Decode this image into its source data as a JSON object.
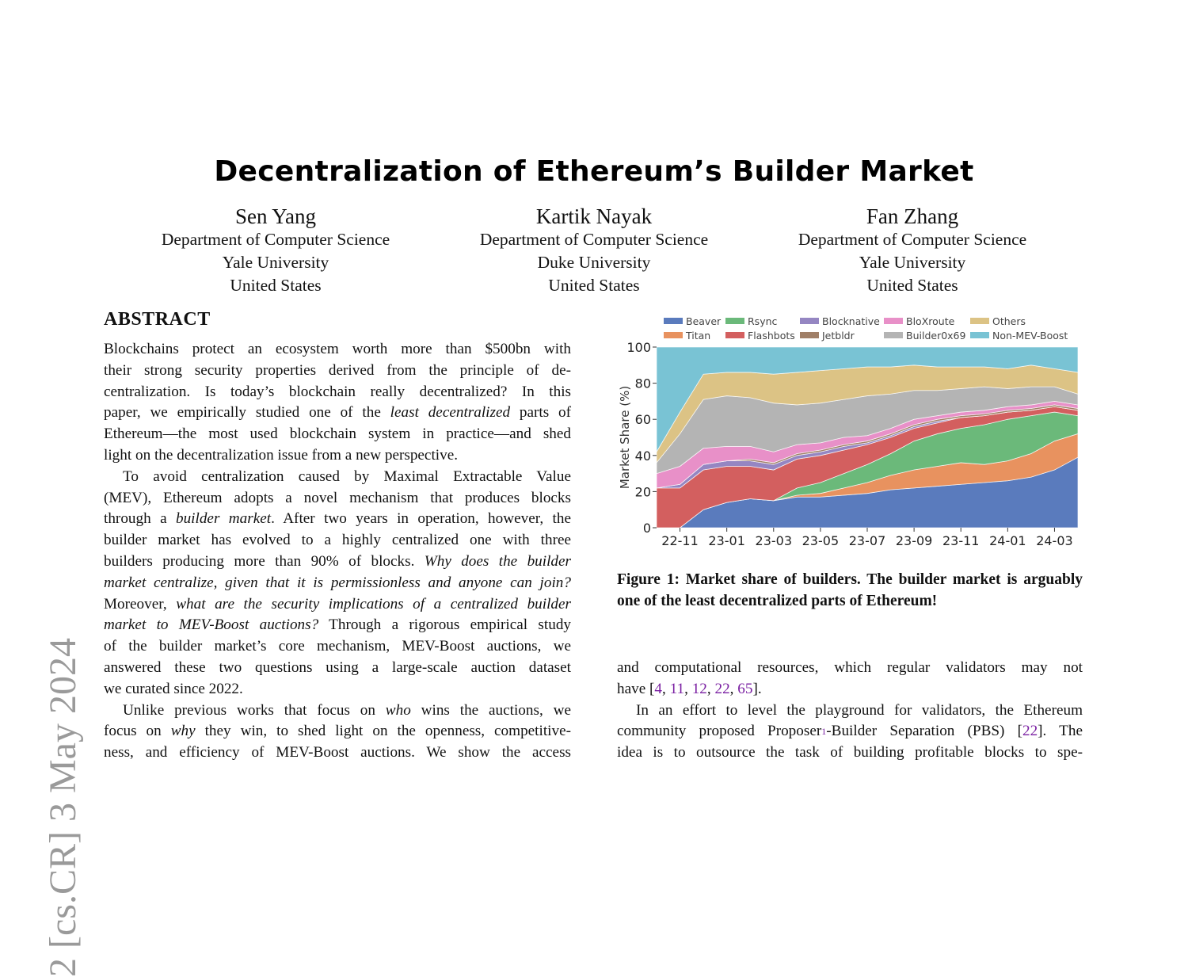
{
  "arxiv_stamp": "2  [cs.CR]  3 May 2024",
  "title": "Decentralization of Ethereum’s Builder Market",
  "authors": [
    {
      "name": "Sen Yang",
      "dept": "Department of Computer Science",
      "univ": "Yale University",
      "country": "United States"
    },
    {
      "name": "Kartik Nayak",
      "dept": "Department of Computer Science",
      "univ": "Duke University",
      "country": "United States"
    },
    {
      "name": "Fan Zhang",
      "dept": "Department of Computer Science",
      "univ": "Yale University",
      "country": "United States"
    }
  ],
  "abstract": {
    "heading": "ABSTRACT",
    "p1": [
      "Blockchains protect an ecosystem worth more than $500bn with",
      "their strong security properties derived from the principle of de-",
      "centralization. Is today’s blockchain really decentralized? In this",
      "paper, we empirically studied one of the ",
      "least decentralized",
      " parts of",
      "Ethereum—the most used blockchain system in practice—and shed",
      "light on the decentralization issue from a new perspective."
    ],
    "p2": [
      "To avoid centralization caused by Maximal Extractable Value",
      "(MEV), Ethereum adopts a novel mechanism that produces blocks",
      "through a ",
      "builder market",
      ". After two years in operation, however, the",
      "builder market has evolved to a highly centralized one with three",
      "builders producing more than 90% of blocks. ",
      "Why does the builder",
      "market centralize, given that it is permissionless and anyone can join?",
      "Moreover, ",
      "what are the security implications of a centralized builder",
      "market to MEV-Boost auctions?",
      " Through a rigorous empirical study",
      "of the builder market’s core mechanism, MEV-Boost auctions, we",
      "answered these two questions using a large-scale auction dataset",
      "we curated since 2022."
    ],
    "p3": [
      "Unlike previous works that focus on ",
      "who",
      " wins the auctions, we",
      "focus on ",
      "why",
      " they win, to shed light on the openness, competitive-",
      "ness, and efficiency of MEV-Boost auctions. We show the access"
    ]
  },
  "figure": {
    "caption": "Figure 1: Market share of builders. The builder market is arguably one of the least decentralized parts of Ethereum!"
  },
  "right_col": {
    "p1": [
      "and computational resources, which regular validators may not",
      "have [",
      "4",
      ", ",
      "11",
      ", ",
      "12",
      ", ",
      "22",
      ", ",
      "65",
      "]."
    ],
    "p2": [
      "In an effort to level the playground for validators, the Ethereum",
      "community proposed Proposer",
      "1",
      "-Builder Separation (PBS) [",
      "22",
      "]. The",
      "idea is to outsource the task of building profitable blocks to spe-"
    ]
  },
  "chart_data": {
    "type": "area",
    "stacked": true,
    "percent": true,
    "ylabel": "Market Share (%)",
    "xlabel": "",
    "ylim": [
      0,
      100
    ],
    "yticks": [
      0,
      20,
      40,
      60,
      80,
      100
    ],
    "xticks": [
      "22-11",
      "23-01",
      "23-03",
      "23-05",
      "23-07",
      "23-09",
      "23-11",
      "24-01",
      "24-03"
    ],
    "legend_position": "top",
    "x": [
      "22-10",
      "22-11",
      "22-12",
      "23-01",
      "23-02",
      "23-03",
      "23-04",
      "23-05",
      "23-06",
      "23-07",
      "23-08",
      "23-09",
      "23-10",
      "23-11",
      "23-12",
      "24-01",
      "24-02",
      "24-03",
      "24-04"
    ],
    "series": [
      {
        "name": "Beaver",
        "color": "#5a7bbd",
        "values": [
          0,
          0,
          10,
          14,
          16,
          15,
          17,
          17,
          18,
          19,
          21,
          22,
          23,
          24,
          25,
          26,
          28,
          32,
          39
        ]
      },
      {
        "name": "Titan",
        "color": "#e8925f",
        "values": [
          0,
          0,
          0,
          0,
          0,
          0,
          1,
          2,
          4,
          6,
          8,
          10,
          11,
          12,
          10,
          11,
          13,
          16,
          13
        ]
      },
      {
        "name": "Rsync",
        "color": "#6bb97a",
        "values": [
          0,
          0,
          0,
          0,
          0,
          0,
          4,
          6,
          8,
          10,
          12,
          16,
          18,
          19,
          22,
          23,
          21,
          16,
          10
        ]
      },
      {
        "name": "Flashbots",
        "color": "#d35f5f",
        "values": [
          22,
          22,
          22,
          20,
          18,
          17,
          16,
          15,
          13,
          11,
          9,
          7,
          6,
          6,
          5,
          4,
          3,
          3,
          3
        ]
      },
      {
        "name": "Blocknative",
        "color": "#9586c2",
        "values": [
          0,
          2,
          3,
          3,
          3,
          3,
          2,
          2,
          2,
          1,
          1,
          1,
          1,
          0,
          0,
          0,
          0,
          0,
          0
        ]
      },
      {
        "name": "Jetbldr",
        "color": "#a07f67",
        "values": [
          0,
          0,
          0,
          0,
          1,
          1,
          1,
          1,
          1,
          1,
          1,
          1,
          1,
          1,
          1,
          1,
          1,
          1,
          1
        ]
      },
      {
        "name": "BloXroute",
        "color": "#e890c8",
        "values": [
          8,
          10,
          9,
          8,
          7,
          6,
          5,
          4,
          4,
          3,
          3,
          3,
          2,
          2,
          2,
          2,
          2,
          2,
          2
        ]
      },
      {
        "name": "Builder0x69",
        "color": "#b4b4b4",
        "values": [
          6,
          18,
          27,
          28,
          27,
          27,
          22,
          22,
          21,
          22,
          19,
          16,
          14,
          13,
          13,
          10,
          10,
          8,
          6
        ]
      },
      {
        "name": "Others",
        "color": "#dcc385",
        "values": [
          6,
          12,
          14,
          13,
          14,
          16,
          18,
          18,
          17,
          16,
          15,
          14,
          13,
          12,
          11,
          11,
          12,
          10,
          12
        ]
      },
      {
        "name": "Non-MEV-Boost",
        "color": "#79c3d4",
        "values": [
          58,
          36,
          15,
          14,
          14,
          15,
          14,
          13,
          12,
          11,
          11,
          10,
          11,
          11,
          11,
          12,
          10,
          12,
          14
        ]
      }
    ]
  }
}
